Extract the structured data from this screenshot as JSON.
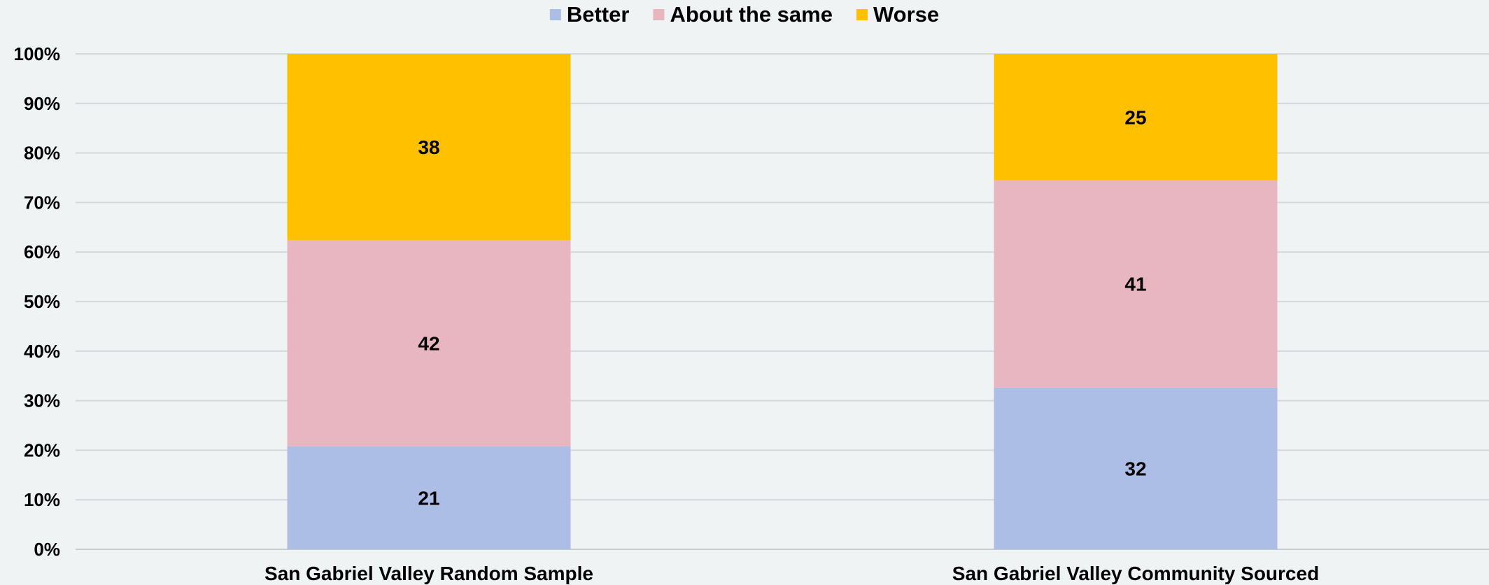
{
  "chart_data": {
    "type": "bar",
    "stacked": true,
    "categories": [
      "San Gabriel Valley Random Sample",
      "San Gabriel Valley Community Sourced"
    ],
    "series": [
      {
        "name": "Better",
        "values": [
          21,
          32
        ],
        "color": "#adbee6"
      },
      {
        "name": "About the same",
        "values": [
          42,
          41
        ],
        "color": "#e8b6c1"
      },
      {
        "name": "Worse",
        "values": [
          38,
          25
        ],
        "color": "#ffc000"
      }
    ],
    "ylim": [
      0,
      100
    ],
    "yticks": [
      0,
      10,
      20,
      30,
      40,
      50,
      60,
      70,
      80,
      90,
      100
    ],
    "ytick_format": "%",
    "legend_position": "top-center",
    "grid": true
  }
}
